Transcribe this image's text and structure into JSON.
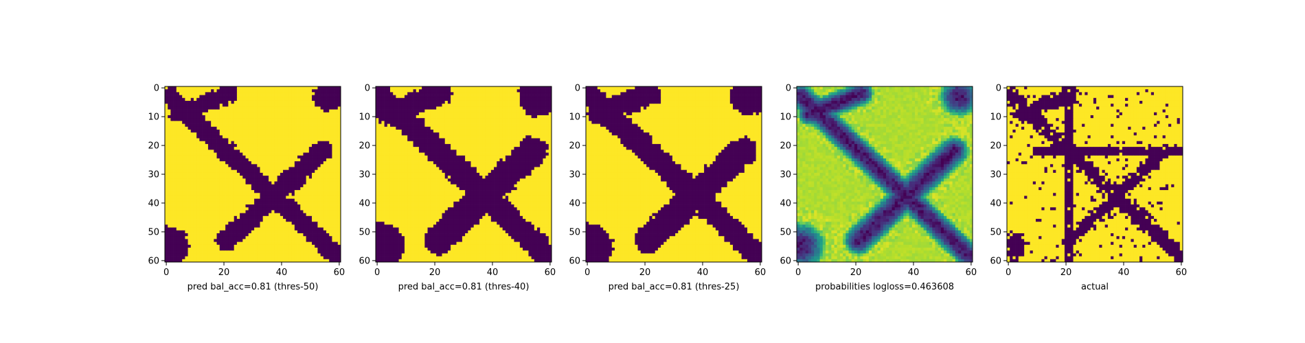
{
  "chart_data": [
    {
      "type": "heatmap",
      "title": "",
      "xlabel": "pred bal_acc=0.81 (thres-50)",
      "ylabel": "",
      "xlim": [
        0,
        60
      ],
      "ylim": [
        60,
        0
      ],
      "xticks": [
        "0",
        "20",
        "40",
        "60"
      ],
      "yticks": [
        "0",
        "10",
        "20",
        "30",
        "40",
        "50",
        "60"
      ],
      "colormap": "viridis-binary",
      "colors": {
        "low": "#440154",
        "high": "#fde725"
      },
      "pattern": "X-shaped class-0 band from upper-left to lower-right; a second band from lower-left (x~20,y~53) to upper-right (x~53,y~22); small blobs at top-right and bottom-left corners"
    },
    {
      "type": "heatmap",
      "title": "",
      "xlabel": "pred bal_acc=0.81 (thres-40)",
      "ylabel": "",
      "xlim": [
        0,
        60
      ],
      "ylim": [
        60,
        0
      ],
      "xticks": [
        "0",
        "20",
        "40",
        "60"
      ],
      "yticks": [
        "0",
        "10",
        "20",
        "30",
        "40",
        "50",
        "60"
      ],
      "colormap": "viridis-binary",
      "colors": {
        "low": "#440154",
        "high": "#fde725"
      },
      "pattern": "same X pattern as thres-50 with wider bands; larger blobs at top-right and bottom-left corners"
    },
    {
      "type": "heatmap",
      "title": "",
      "xlabel": "pred bal_acc=0.81 (thres-25)",
      "ylabel": "",
      "xlim": [
        0,
        60
      ],
      "ylim": [
        60,
        0
      ],
      "xticks": [
        "0",
        "20",
        "40",
        "60"
      ],
      "yticks": [
        "0",
        "10",
        "20",
        "30",
        "40",
        "50",
        "60"
      ],
      "colormap": "viridis-binary",
      "colors": {
        "low": "#440154",
        "high": "#fde725"
      },
      "pattern": "X pattern similar to thres-40"
    },
    {
      "type": "heatmap",
      "title": "",
      "xlabel": "probabilities logloss=0.463608",
      "ylabel": "",
      "xlim": [
        0,
        60
      ],
      "ylim": [
        60,
        0
      ],
      "xticks": [
        "0",
        "20",
        "40",
        "60"
      ],
      "yticks": [
        "0",
        "10",
        "20",
        "30",
        "40",
        "50",
        "60"
      ],
      "colormap": "viridis",
      "colors": {
        "low": "#440154",
        "mid": "#21918c",
        "high": "#dde318"
      },
      "pattern": "continuous probabilities; dark diagonal band upper-left to lower-right, second dark band lower-left to upper-right, green-teal halos, mostly yellow-green background"
    },
    {
      "type": "heatmap",
      "title": "",
      "xlabel": "actual",
      "ylabel": "",
      "xlim": [
        0,
        60
      ],
      "ylim": [
        60,
        0
      ],
      "xticks": [
        "0",
        "20",
        "40",
        "60"
      ],
      "yticks": [
        "0",
        "10",
        "20",
        "30",
        "40",
        "50",
        "60"
      ],
      "colormap": "viridis-binary",
      "colors": {
        "low": "#440154",
        "high": "#fde725"
      },
      "pattern": "irregular X shape plus a vertical line at x~21 and a horizontal band at y~22, scattered noise pixels"
    }
  ]
}
